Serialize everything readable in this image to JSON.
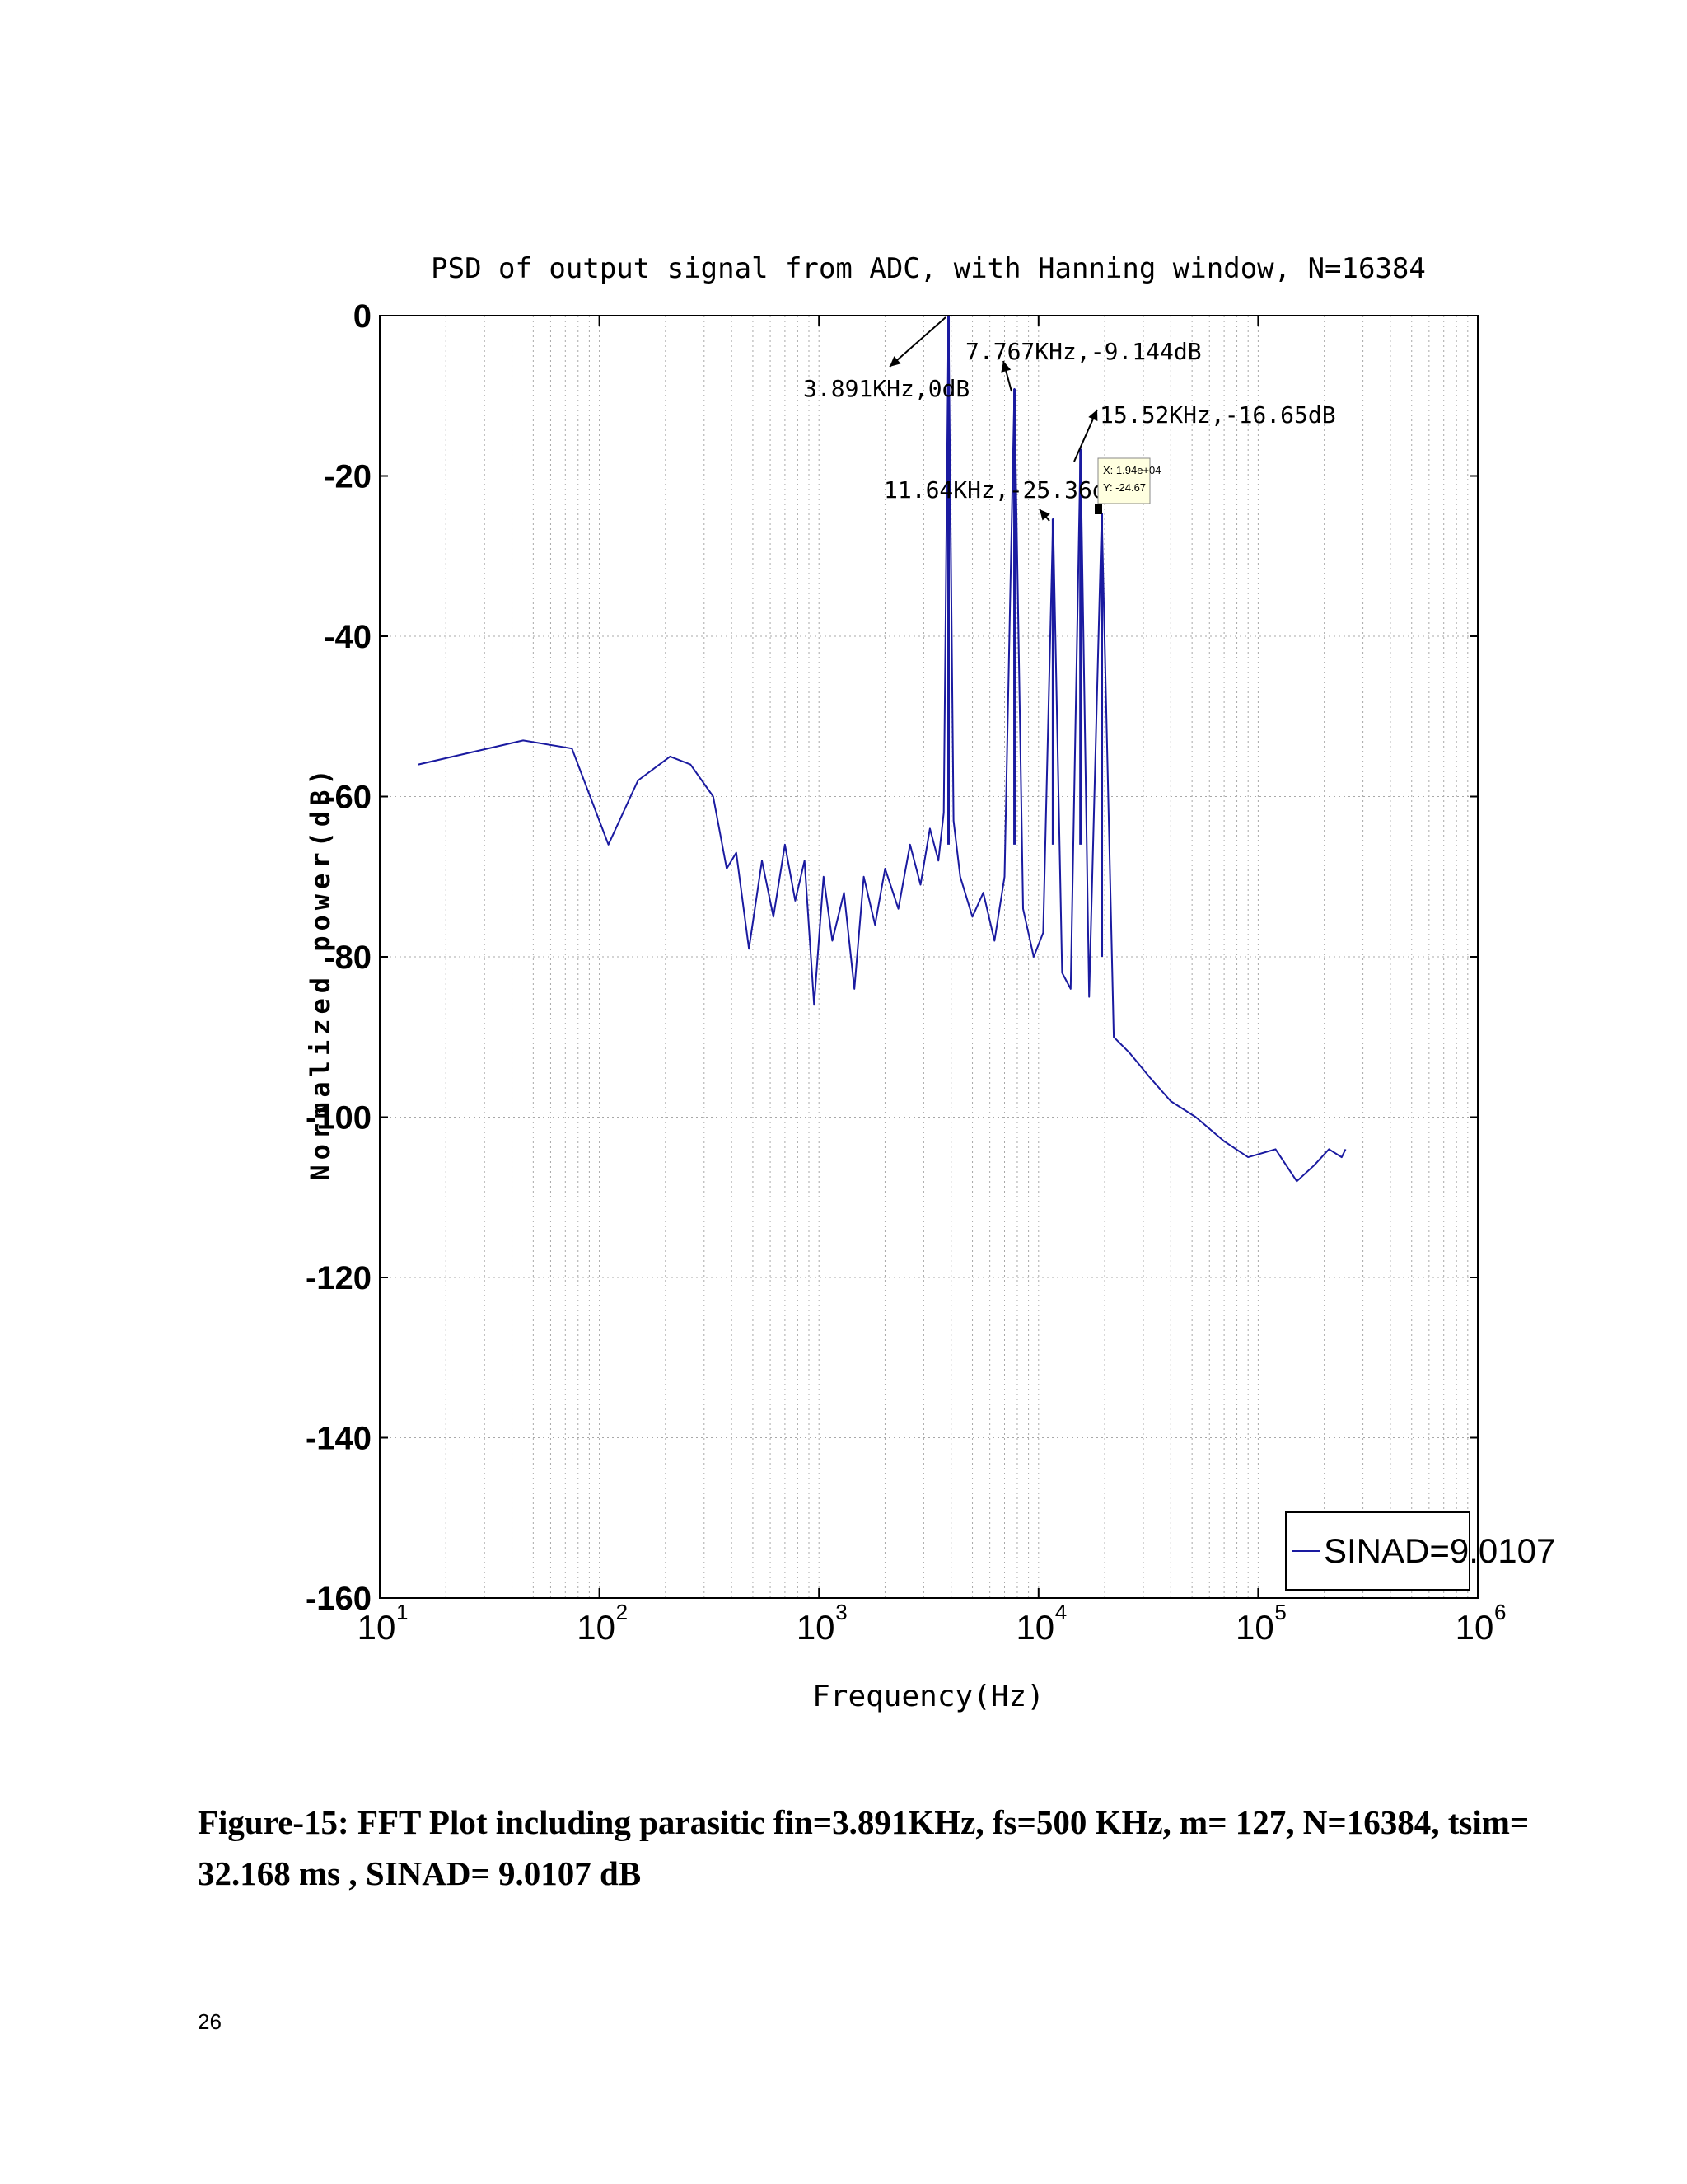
{
  "chart_data": {
    "type": "line",
    "title": "PSD of output signal from ADC, with Hanning window, N=16384",
    "xlabel": "Frequency(Hz)",
    "ylabel": "Normalized power(dB)",
    "xscale": "log",
    "xlim": [
      10,
      1000000
    ],
    "ylim": [
      -160,
      0
    ],
    "yticks": [
      0,
      -20,
      -40,
      -60,
      -80,
      -100,
      -120,
      -140,
      -160
    ],
    "xticks": [
      {
        "base": "10",
        "exp": "1",
        "value": 10
      },
      {
        "base": "10",
        "exp": "2",
        "value": 100
      },
      {
        "base": "10",
        "exp": "3",
        "value": 1000
      },
      {
        "base": "10",
        "exp": "4",
        "value": 10000
      },
      {
        "base": "10",
        "exp": "5",
        "value": 100000
      },
      {
        "base": "10",
        "exp": "6",
        "value": 1000000
      }
    ],
    "grid": true,
    "legend": {
      "position": "bottom-right",
      "entries": [
        "SINAD=9.0107"
      ]
    },
    "series": [
      {
        "name": "SINAD=9.0107",
        "color": "#1a1aa0",
        "x": [
          15,
          45,
          75,
          110,
          150,
          210,
          260,
          330,
          380,
          420,
          480,
          550,
          620,
          700,
          780,
          860,
          950,
          1050,
          1150,
          1300,
          1450,
          1600,
          1800,
          2000,
          2300,
          2600,
          2900,
          3200,
          3500,
          3700,
          3891,
          4100,
          4400,
          5000,
          5600,
          6300,
          7000,
          7767,
          8500,
          9500,
          10500,
          11640,
          12800,
          14000,
          15520,
          17000,
          19400,
          22000,
          26000,
          32000,
          40000,
          52000,
          70000,
          90000,
          120000,
          150000,
          180000,
          210000,
          240000,
          250000
        ],
        "y": [
          -56,
          -53,
          -54,
          -66,
          -58,
          -55,
          -56,
          -60,
          -69,
          -67,
          -79,
          -68,
          -75,
          -66,
          -73,
          -68,
          -86,
          -70,
          -78,
          -72,
          -84,
          -70,
          -76,
          -69,
          -74,
          -66,
          -71,
          -64,
          -68,
          -62,
          0,
          -63,
          -70,
          -75,
          -72,
          -78,
          -70,
          -9.144,
          -74,
          -80,
          -77,
          -25.36,
          -82,
          -84,
          -16.65,
          -85,
          -24.67,
          -90,
          -92,
          -95,
          -98,
          -100,
          -103,
          -105,
          -104,
          -108,
          -106,
          -104,
          -105,
          -104
        ]
      }
    ],
    "annotations": [
      {
        "text": "3.891KHz,0dB",
        "x": 3891,
        "y": 0
      },
      {
        "text": "7.767KHz,-9.144dB",
        "x": 7767,
        "y": -9.144
      },
      {
        "text": "15.52KHz,-16.65dB",
        "x": 15520,
        "y": -16.65
      },
      {
        "text": "11.64KHz,-25.36dB",
        "x": 11640,
        "y": -25.36
      }
    ],
    "datatip": {
      "x": 19400,
      "y": -24.67,
      "x_label": "X: 1.94e+04",
      "y_label": "Y: -24.67"
    }
  },
  "caption": "Figure-15: FFT Plot including parasitic fin=3.891KHz, fs=500 KHz, m= 127, N=16384, tsim= 32.168 ms , SINAD= 9.0107 dB",
  "page_number": "26"
}
